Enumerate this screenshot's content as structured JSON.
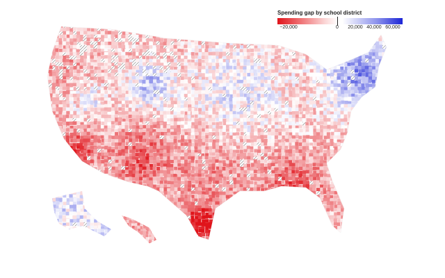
{
  "legend": {
    "title": "Spending gap by school district",
    "ticks": [
      "−20,000",
      "0",
      "20,000",
      "40,000",
      "60,000"
    ],
    "colors": {
      "negative_strong": "#e0141b",
      "negative_light": "#f7b3b4",
      "neutral": "#ffffff",
      "positive_light": "#c9ccf5",
      "positive_strong": "#1c25d6",
      "no_data_hatch": "#555555"
    }
  },
  "map": {
    "region": "United States school districts",
    "encoding": "diverging red-white-blue choropleth; hatched = no data"
  }
}
